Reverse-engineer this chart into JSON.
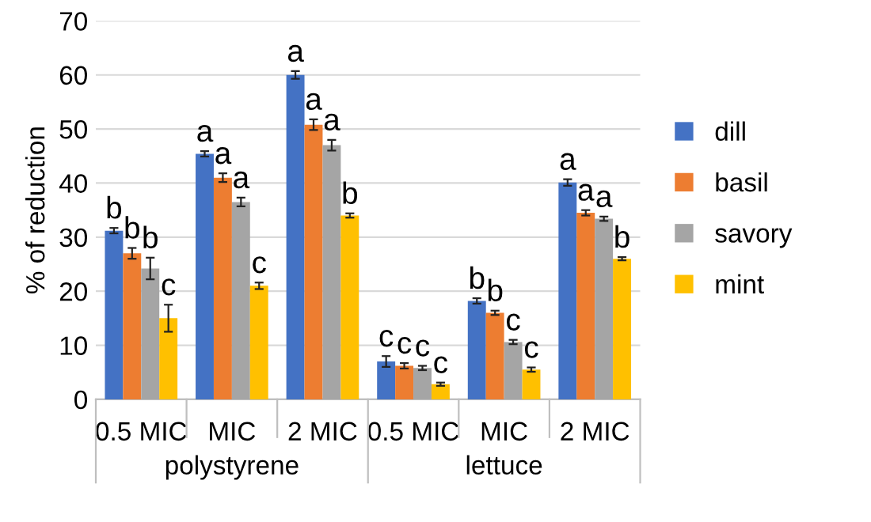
{
  "chart_data": {
    "type": "bar",
    "ylabel": "% of reduction",
    "categories": [
      "0.5 MIC",
      "MIC",
      "2 MIC",
      "0.5 MIC",
      "MIC",
      "2 MIC"
    ],
    "annotations": [
      "polystyrene",
      "lettuce"
    ],
    "series": [
      {
        "name": "dill",
        "color": "#4472c4",
        "values": [
          31.2,
          45.4,
          60,
          7,
          18.2,
          40.1
        ],
        "errors": [
          0.5,
          0.5,
          0.7,
          1,
          0.5,
          0.6
        ],
        "value_labels": [
          "b",
          "a",
          "a",
          "c",
          "b",
          "a"
        ]
      },
      {
        "name": "basil",
        "color": "#ed7d31",
        "values": [
          27,
          41,
          50.8,
          6.2,
          16,
          34.5
        ],
        "errors": [
          1,
          0.8,
          1,
          0.5,
          0.4,
          0.5
        ],
        "value_labels": [
          "b",
          "a",
          "a",
          "c",
          "b",
          "a"
        ]
      },
      {
        "name": "savory",
        "color": "#a5a5a5",
        "values": [
          24.2,
          36.5,
          47,
          5.8,
          10.6,
          33.4
        ],
        "errors": [
          2,
          0.8,
          1,
          0.4,
          0.4,
          0.4
        ],
        "value_labels": [
          "b",
          "a",
          "a",
          "c",
          "c",
          "a"
        ]
      },
      {
        "name": "mint",
        "color": "#ffc000",
        "values": [
          15,
          21,
          34,
          2.8,
          5.5,
          26
        ],
        "errors": [
          2.5,
          0.6,
          0.4,
          0.3,
          0.4,
          0.3
        ],
        "value_labels": [
          "c",
          "c",
          "b",
          "c",
          "c",
          "b"
        ]
      }
    ],
    "ylim": [
      0,
      70
    ],
    "yticks": [
      0,
      10,
      20,
      30,
      40,
      50,
      60,
      70
    ],
    "grid": "y",
    "legend": "right"
  }
}
